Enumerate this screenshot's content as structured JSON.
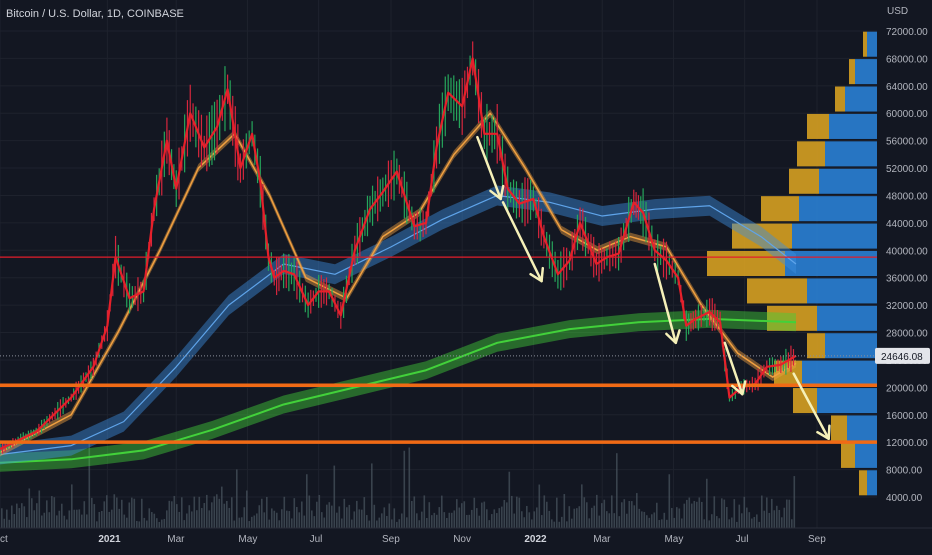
{
  "title": "Bitcoin / U.S. Dollar, 1D, COINBASE",
  "currency": "USD",
  "last_price_label": "24646.08",
  "colors": {
    "background": "#131722",
    "grid": "#1e222d",
    "price": "#e6202a",
    "ema_fast": "#f0a040",
    "ma_mid": "#3c8fe0",
    "ma_slow": "#42d13a",
    "horizontal_level_red": "#e11d2a",
    "horizontal_level_orange": "#f06a15",
    "arrow": "#f5f0b8",
    "vp_up": "#2a7fd4",
    "vp_down": "#d6a021",
    "volume": "#4f5b66"
  },
  "chart_data": {
    "type": "line",
    "title": "Bitcoin / U.S. Dollar, 1D, COINBASE",
    "xlabel": "",
    "ylabel": "USD",
    "ylim": [
      0,
      74000
    ],
    "grid": true,
    "x_ticks": [
      "ct",
      "2021",
      "Mar",
      "May",
      "Jul",
      "Sep",
      "Nov",
      "2022",
      "Mar",
      "May",
      "Jul",
      "Sep"
    ],
    "y_ticks": [
      4000,
      8000,
      12000,
      16000,
      20000,
      24000,
      28000,
      32000,
      36000,
      40000,
      44000,
      48000,
      52000,
      56000,
      60000,
      64000,
      68000,
      72000
    ],
    "y_tick_labels": [
      "4000.00",
      "8000.00",
      "12000.00",
      "16000.00",
      "20000.00",
      "24000.00",
      "28000.00",
      "32000.00",
      "36000.00",
      "40000.00",
      "44000.00",
      "48000.00",
      "52000.00",
      "56000.00",
      "60000.00",
      "64000.00",
      "68000.00",
      "72000.00"
    ],
    "series": [
      {
        "role": "price",
        "x": [
          "2020-10-01",
          "2020-11-01",
          "2020-12-01",
          "2020-12-20",
          "2021-01-01",
          "2021-01-08",
          "2021-01-20",
          "2021-02-01",
          "2021-02-10",
          "2021-02-21",
          "2021-03-01",
          "2021-03-13",
          "2021-03-25",
          "2021-04-05",
          "2021-04-14",
          "2021-04-25",
          "2021-05-05",
          "2021-05-12",
          "2021-05-19",
          "2021-05-24",
          "2021-06-01",
          "2021-06-10",
          "2021-06-22",
          "2021-07-01",
          "2021-07-10",
          "2021-07-20",
          "2021-08-01",
          "2021-08-14",
          "2021-08-25",
          "2021-09-06",
          "2021-09-21",
          "2021-10-01",
          "2021-10-10",
          "2021-10-20",
          "2021-11-01",
          "2021-11-10",
          "2021-11-20",
          "2021-12-01",
          "2021-12-10",
          "2021-12-20",
          "2022-01-01",
          "2022-01-10",
          "2022-01-22",
          "2022-02-01",
          "2022-02-10",
          "2022-02-24",
          "2022-03-05",
          "2022-03-15",
          "2022-03-28",
          "2022-04-05",
          "2022-04-15",
          "2022-04-25",
          "2022-05-05",
          "2022-05-12",
          "2022-05-20",
          "2022-06-01",
          "2022-06-10",
          "2022-06-18",
          "2022-06-28",
          "2022-07-10",
          "2022-07-20",
          "2022-08-01",
          "2022-08-14"
        ],
        "values": [
          11000,
          13500,
          18500,
          23000,
          29000,
          39000,
          33000,
          34000,
          46000,
          56000,
          49000,
          60000,
          55000,
          58000,
          63500,
          52000,
          57000,
          50000,
          39000,
          36000,
          37000,
          36500,
          32000,
          34000,
          34000,
          30500,
          40000,
          46000,
          48500,
          51500,
          43500,
          44000,
          55000,
          63000,
          61000,
          68000,
          57000,
          57000,
          49000,
          46800,
          47500,
          42000,
          36500,
          38500,
          44000,
          38000,
          39000,
          39500,
          47000,
          45500,
          40000,
          38500,
          36000,
          29000,
          30000,
          31000,
          29500,
          18500,
          20000,
          20500,
          23000,
          23300,
          24600
        ]
      },
      {
        "role": "ema_fast",
        "x": [
          "2020-10-01",
          "2020-12-01",
          "2021-01-10",
          "2021-02-15",
          "2021-03-20",
          "2021-04-20",
          "2021-05-20",
          "2021-06-20",
          "2021-07-25",
          "2021-08-25",
          "2021-09-25",
          "2021-10-25",
          "2021-11-25",
          "2021-12-25",
          "2022-01-25",
          "2022-02-25",
          "2022-03-25",
          "2022-04-25",
          "2022-05-25",
          "2022-06-25",
          "2022-07-25",
          "2022-08-14"
        ],
        "values": [
          10500,
          16000,
          28000,
          40000,
          52000,
          57000,
          48000,
          36000,
          33000,
          42000,
          45500,
          54000,
          60000,
          52000,
          43000,
          40000,
          42000,
          40500,
          32000,
          25000,
          21500,
          23500
        ]
      },
      {
        "role": "ma_mid",
        "x": [
          "2020-10-01",
          "2020-12-01",
          "2021-01-15",
          "2021-03-01",
          "2021-04-15",
          "2021-06-01",
          "2021-07-15",
          "2021-09-01",
          "2021-10-15",
          "2021-12-01",
          "2022-01-15",
          "2022-03-01",
          "2022-04-15",
          "2022-06-01",
          "2022-07-15",
          "2022-08-14"
        ],
        "values": [
          10200,
          11500,
          15000,
          23000,
          32000,
          38000,
          36500,
          40500,
          44500,
          48000,
          47000,
          45000,
          46000,
          46500,
          42000,
          38000
        ]
      },
      {
        "role": "ma_slow",
        "x": [
          "2020-10-01",
          "2020-12-01",
          "2021-02-01",
          "2021-04-01",
          "2021-06-01",
          "2021-08-01",
          "2021-10-01",
          "2021-12-01",
          "2022-02-01",
          "2022-04-01",
          "2022-06-01",
          "2022-08-14"
        ],
        "values": [
          9000,
          9500,
          10800,
          13800,
          17500,
          20000,
          22500,
          26500,
          28500,
          29500,
          30000,
          29500
        ]
      }
    ],
    "horizontal_levels": [
      39000,
      20300,
      12000
    ],
    "annotations": [
      {
        "type": "arrow",
        "from": [
          "2021-11-14",
          56500
        ],
        "to": [
          "2021-12-04",
          47500
        ]
      },
      {
        "type": "arrow",
        "from": [
          "2021-12-06",
          47000
        ],
        "to": [
          "2022-01-08",
          35500
        ]
      },
      {
        "type": "arrow",
        "from": [
          "2022-04-15",
          38000
        ],
        "to": [
          "2022-05-03",
          26500
        ]
      },
      {
        "type": "arrow",
        "from": [
          "2022-06-14",
          26500
        ],
        "to": [
          "2022-06-29",
          19000
        ]
      },
      {
        "type": "arrow",
        "from": [
          "2022-08-12",
          22000
        ],
        "to": [
          "2022-09-11",
          12500
        ]
      }
    ]
  }
}
